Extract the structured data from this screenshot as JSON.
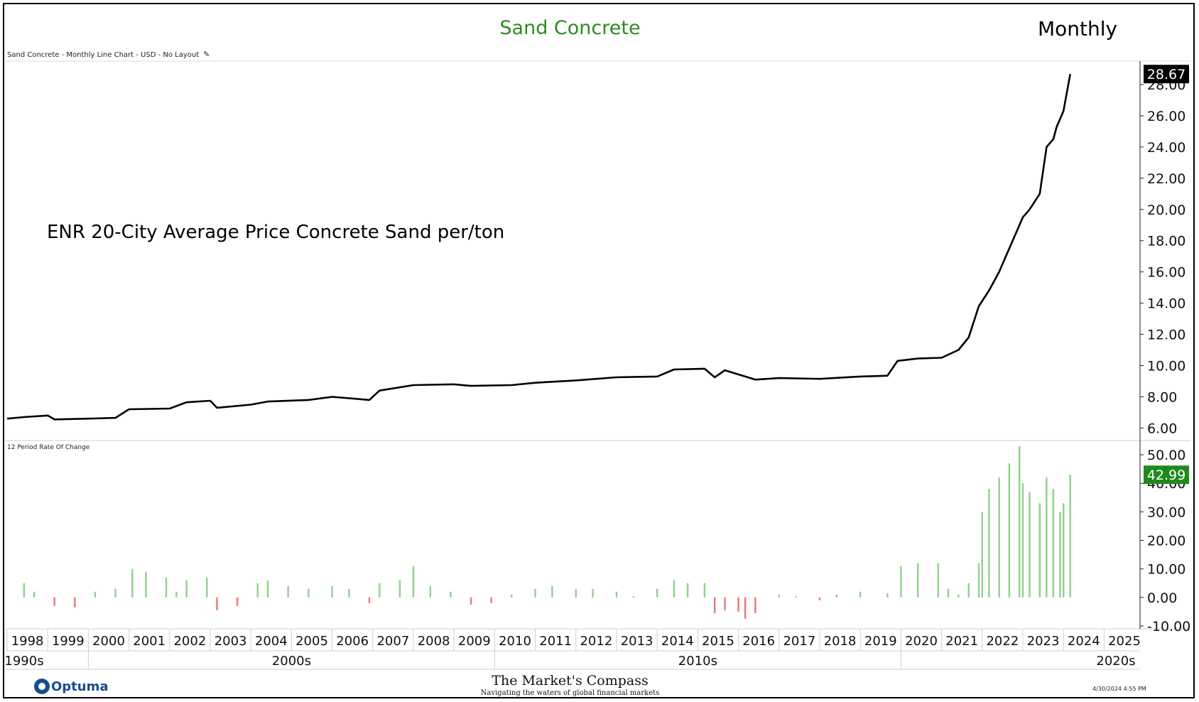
{
  "header": {
    "title": "Sand Concrete",
    "period": "Monthly",
    "main_pane_label": "Sand Concrete - Monthly Line Chart - USD - No Layout",
    "sub_pane_label": "12 Period Rate Of Change",
    "annotation": "ENR 20-City Average Price Concrete Sand per/ton"
  },
  "footer": {
    "logo_text": "Optuma",
    "brand_name": "The Market's Compass",
    "brand_tagline": "Navigating the waters of global financial markets",
    "timestamp": "4/30/2024 4:55 PM"
  },
  "colors": {
    "title": "#2e8b22",
    "line": "#000000",
    "roc_positive": "#8fd18a",
    "roc_negative": "#e8787a",
    "roc_badge": "#1e8a1e",
    "price_badge": "#000000"
  },
  "chart_data": [
    {
      "type": "line",
      "title": "Sand Concrete",
      "series": [
        {
          "values": [
            [
              "1998-01",
              6.6
            ],
            [
              "1998-06",
              6.7
            ],
            [
              "1999-01",
              6.8
            ],
            [
              "1999-03",
              6.55
            ],
            [
              "2000-01",
              6.6
            ],
            [
              "2000-09",
              6.65
            ],
            [
              "2001-01",
              7.2
            ],
            [
              "2002-01",
              7.25
            ],
            [
              "2002-06",
              7.65
            ],
            [
              "2003-01",
              7.75
            ],
            [
              "2003-03",
              7.3
            ],
            [
              "2004-01",
              7.5
            ],
            [
              "2004-06",
              7.7
            ],
            [
              "2005-06",
              7.8
            ],
            [
              "2006-01",
              8.0
            ],
            [
              "2006-12",
              7.8
            ],
            [
              "2007-03",
              8.4
            ],
            [
              "2008-01",
              8.75
            ],
            [
              "2009-01",
              8.8
            ],
            [
              "2009-06",
              8.7
            ],
            [
              "2010-06",
              8.75
            ],
            [
              "2011-01",
              8.9
            ],
            [
              "2012-01",
              9.05
            ],
            [
              "2013-01",
              9.25
            ],
            [
              "2014-01",
              9.3
            ],
            [
              "2014-06",
              9.75
            ],
            [
              "2015-03",
              9.8
            ],
            [
              "2015-06",
              9.25
            ],
            [
              "2015-09",
              9.7
            ],
            [
              "2016-06",
              9.1
            ],
            [
              "2017-01",
              9.2
            ],
            [
              "2018-01",
              9.15
            ],
            [
              "2019-01",
              9.3
            ],
            [
              "2019-09",
              9.35
            ],
            [
              "2019-12",
              10.3
            ],
            [
              "2020-06",
              10.45
            ],
            [
              "2021-01",
              10.5
            ],
            [
              "2021-06",
              11.0
            ],
            [
              "2021-09",
              11.8
            ],
            [
              "2021-12",
              13.8
            ],
            [
              "2022-03",
              14.8
            ],
            [
              "2022-06",
              16.0
            ],
            [
              "2022-09",
              17.5
            ],
            [
              "2023-01",
              19.5
            ],
            [
              "2023-03",
              20.0
            ],
            [
              "2023-06",
              21.0
            ],
            [
              "2023-08",
              24.0
            ],
            [
              "2023-10",
              24.5
            ],
            [
              "2023-11",
              25.3
            ],
            [
              "2024-01",
              26.3
            ],
            [
              "2024-03",
              28.67
            ]
          ]
        }
      ],
      "y_ticks": [
        "6.00",
        "8.00",
        "10.00",
        "12.00",
        "14.00",
        "16.00",
        "18.00",
        "20.00",
        "22.00",
        "24.00",
        "26.00",
        "28.00"
      ],
      "ylim": [
        5.2,
        29.5
      ],
      "last_value": "28.67"
    },
    {
      "type": "bar",
      "title": "12 Period Rate Of Change",
      "series": [
        {
          "values": [
            [
              "1998-06",
              5.0
            ],
            [
              "1998-09",
              2.0
            ],
            [
              "1999-03",
              -3.0
            ],
            [
              "1999-09",
              -3.5
            ],
            [
              "2000-03",
              2.0
            ],
            [
              "2000-09",
              3.0
            ],
            [
              "2001-02",
              10.0
            ],
            [
              "2001-06",
              9.0
            ],
            [
              "2001-12",
              7.0
            ],
            [
              "2002-03",
              2.0
            ],
            [
              "2002-06",
              6.0
            ],
            [
              "2002-12",
              7.0
            ],
            [
              "2003-03",
              -4.5
            ],
            [
              "2003-09",
              -3.0
            ],
            [
              "2004-03",
              5.0
            ],
            [
              "2004-06",
              6.0
            ],
            [
              "2004-12",
              4.0
            ],
            [
              "2005-06",
              3.0
            ],
            [
              "2006-01",
              4.0
            ],
            [
              "2006-06",
              3.0
            ],
            [
              "2006-12",
              -2.0
            ],
            [
              "2007-03",
              5.0
            ],
            [
              "2007-09",
              6.0
            ],
            [
              "2008-01",
              11.0
            ],
            [
              "2008-06",
              4.0
            ],
            [
              "2008-12",
              2.0
            ],
            [
              "2009-06",
              -2.5
            ],
            [
              "2009-12",
              -2.0
            ],
            [
              "2010-06",
              1.0
            ],
            [
              "2011-01",
              3.0
            ],
            [
              "2011-06",
              4.0
            ],
            [
              "2012-01",
              3.0
            ],
            [
              "2012-06",
              3.0
            ],
            [
              "2013-01",
              2.0
            ],
            [
              "2013-06",
              0.5
            ],
            [
              "2014-01",
              3.0
            ],
            [
              "2014-06",
              6.0
            ],
            [
              "2014-10",
              5.0
            ],
            [
              "2015-03",
              5.0
            ],
            [
              "2015-06",
              -5.5
            ],
            [
              "2015-09",
              -4.5
            ],
            [
              "2016-01",
              -5.0
            ],
            [
              "2016-03",
              -7.5
            ],
            [
              "2016-06",
              -5.5
            ],
            [
              "2017-01",
              1.0
            ],
            [
              "2017-06",
              0.5
            ],
            [
              "2018-01",
              -1.0
            ],
            [
              "2018-06",
              1.0
            ],
            [
              "2019-01",
              2.0
            ],
            [
              "2019-09",
              1.5
            ],
            [
              "2020-01",
              11.0
            ],
            [
              "2020-06",
              12.0
            ],
            [
              "2020-12",
              12.0
            ],
            [
              "2021-03",
              3.0
            ],
            [
              "2021-06",
              1.0
            ],
            [
              "2021-09",
              5.0
            ],
            [
              "2021-12",
              12.0
            ],
            [
              "2022-01",
              30.0
            ],
            [
              "2022-03",
              38.0
            ],
            [
              "2022-06",
              42.0
            ],
            [
              "2022-09",
              47.0
            ],
            [
              "2022-12",
              53.0
            ],
            [
              "2023-01",
              40.0
            ],
            [
              "2023-03",
              37.0
            ],
            [
              "2023-06",
              33.0
            ],
            [
              "2023-08",
              42.0
            ],
            [
              "2023-10",
              38.0
            ],
            [
              "2023-12",
              30.0
            ],
            [
              "2024-01",
              33.0
            ],
            [
              "2024-03",
              42.99
            ]
          ]
        }
      ],
      "y_ticks": [
        "-10.00",
        "0.00",
        "10.00",
        "20.00",
        "30.00",
        "40.00",
        "50.00"
      ],
      "ylim": [
        -11,
        55
      ],
      "last_value": "42.99"
    }
  ],
  "x_axis": {
    "years": [
      "1998",
      "1999",
      "2000",
      "2001",
      "2002",
      "2003",
      "2004",
      "2005",
      "2006",
      "2007",
      "2008",
      "2009",
      "2010",
      "2011",
      "2012",
      "2013",
      "2014",
      "2015",
      "2016",
      "2017",
      "2018",
      "2019",
      "2020",
      "2021",
      "2022",
      "2023",
      "2024",
      "2025"
    ],
    "decades": [
      "1990s",
      "2000s",
      "2010s",
      "2020s"
    ],
    "decade_boundaries": [
      "2000",
      "2010",
      "2020"
    ]
  }
}
